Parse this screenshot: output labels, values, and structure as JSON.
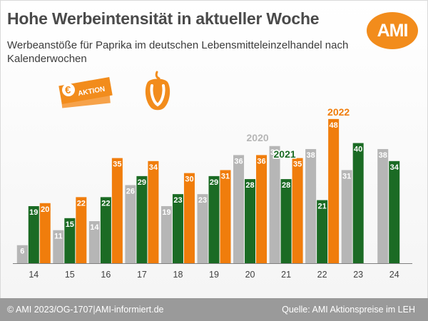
{
  "header": {
    "title": "Hohe Werbeintensität in aktueller Woche",
    "subtitle": "Werbeanstöße für Paprika im deutschen Lebensmitteleinzelhandel nach Kalenderwochen",
    "logo_text": "AMI",
    "promo_badge_text": "AKTION",
    "promo_symbol": "€"
  },
  "footer": {
    "left": "© AMI 2023/OG-1707|AMI-informiert.de",
    "right": "Quelle: AMI Aktionspreise im LEH"
  },
  "colors": {
    "series_2020": "#b6b6b6",
    "series_2021": "#1b6b24",
    "series_2022": "#f07d0c",
    "brand": "#f28c1c",
    "footer_bg": "#9a9a9a"
  },
  "chart_data": {
    "type": "bar",
    "categories": [
      "14",
      "15",
      "16",
      "17",
      "18",
      "19",
      "20",
      "21",
      "22",
      "23",
      "24"
    ],
    "series": [
      {
        "name": "2020",
        "values": [
          6,
          11,
          14,
          26,
          19,
          23,
          36,
          39,
          38,
          31,
          38
        ]
      },
      {
        "name": "2021",
        "values": [
          19,
          15,
          22,
          29,
          23,
          29,
          28,
          28,
          21,
          40,
          34
        ]
      },
      {
        "name": "2022",
        "values": [
          20,
          22,
          35,
          34,
          30,
          31,
          36,
          35,
          48,
          null,
          null
        ]
      }
    ],
    "ylim": [
      0,
      52
    ],
    "grid": false,
    "data_labels": true,
    "legend": "inline labels above bars"
  }
}
